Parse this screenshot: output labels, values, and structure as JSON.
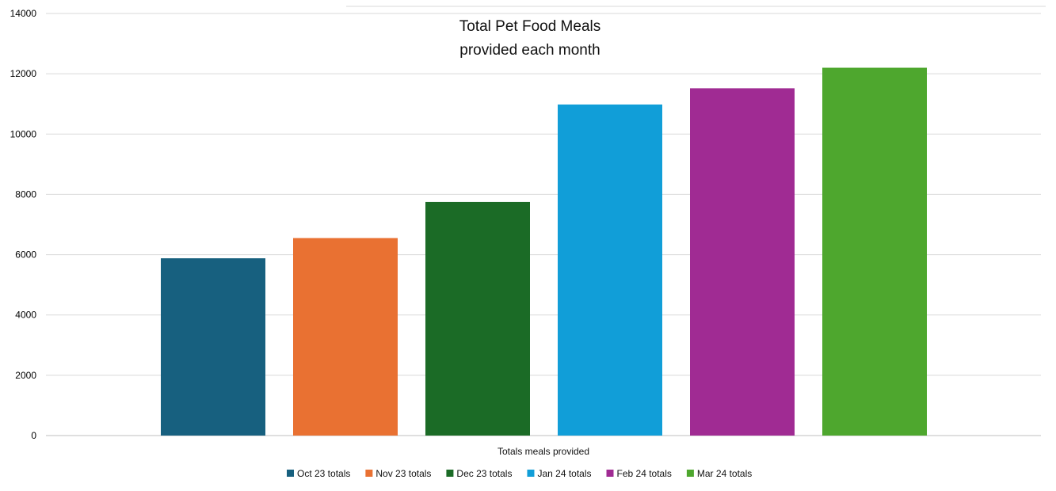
{
  "chart_data": {
    "type": "bar",
    "title_lines": [
      "Total Pet Food Meals",
      "provided each month"
    ],
    "xlabel": "Totals meals provided",
    "ylabel": "",
    "ylim": [
      0,
      14000
    ],
    "yticks": [
      0,
      2000,
      4000,
      6000,
      8000,
      10000,
      12000,
      14000
    ],
    "grid": true,
    "legend_position": "bottom",
    "series": [
      {
        "name": "Oct 23 totals",
        "value": 5880,
        "color": "#17607f"
      },
      {
        "name": "Nov 23 totals",
        "value": 6550,
        "color": "#e97132"
      },
      {
        "name": "Dec 23 totals",
        "value": 7750,
        "color": "#1b6b26"
      },
      {
        "name": "Jan 24 totals",
        "value": 10980,
        "color": "#119ed8"
      },
      {
        "name": "Feb 24 totals",
        "value": 11520,
        "color": "#a02b93"
      },
      {
        "name": "Mar 24 totals",
        "value": 12200,
        "color": "#4ea72e"
      }
    ]
  }
}
